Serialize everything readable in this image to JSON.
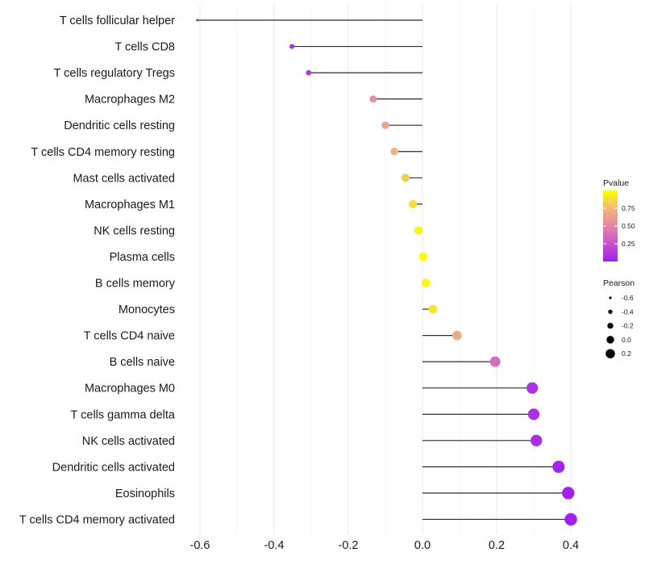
{
  "chart_data": {
    "type": "lollipop",
    "title": "",
    "xlabel": "",
    "ylabel": "",
    "xlim": [
      -0.62,
      0.42
    ],
    "x_ticks": [
      -0.6,
      -0.4,
      -0.2,
      0.0,
      0.2,
      0.4
    ],
    "x_tick_labels": [
      "-0.6",
      "-0.4",
      "-0.2",
      "0.0",
      "0.2",
      "0.4"
    ],
    "grid": true,
    "categories": [
      "T cells follicular helper",
      "T cells CD8",
      "T cells regulatory  Tregs",
      "Macrophages M2",
      "Dendritic cells resting",
      "T cells CD4 memory resting",
      "Mast cells activated",
      "Macrophages M1",
      "NK cells resting",
      "Plasma cells",
      "B cells memory",
      "Monocytes",
      "T cells CD4 naive",
      "B cells naive",
      "Macrophages M0",
      "T cells gamma delta",
      "NK cells activated",
      "Dendritic cells activated",
      "Eosinophils",
      "T cells CD4 memory activated"
    ],
    "series": [
      {
        "name": "Pearson",
        "values": [
          -0.607,
          -0.352,
          -0.307,
          -0.133,
          -0.1,
          -0.076,
          -0.046,
          -0.026,
          -0.011,
          0.002,
          0.009,
          0.028,
          0.093,
          0.196,
          0.296,
          0.3,
          0.307,
          0.367,
          0.393,
          0.4
        ]
      },
      {
        "name": "Pvalue",
        "values": [
          0.0,
          0.08,
          0.12,
          0.55,
          0.65,
          0.72,
          0.82,
          0.88,
          0.95,
          0.98,
          0.96,
          0.9,
          0.7,
          0.38,
          0.1,
          0.08,
          0.07,
          0.02,
          0.01,
          0.01
        ]
      }
    ],
    "legend": {
      "position": "right",
      "color": {
        "title": "Pvalue",
        "labels": [
          "0.75",
          "0.50",
          "0.25"
        ],
        "values": [
          0.75,
          0.5,
          0.25
        ],
        "range": [
          0.0,
          1.0
        ],
        "low_color": "#a020f0",
        "mid_color": "#e07ab0",
        "high_mid_color": "#f2b878",
        "high_color": "#ffff00"
      },
      "size": {
        "title": "Pearson",
        "labels": [
          "-0.6",
          "-0.4",
          "-0.2",
          "0.0",
          "0.2"
        ],
        "values": [
          -0.6,
          -0.4,
          -0.2,
          0.0,
          0.2
        ]
      }
    }
  }
}
